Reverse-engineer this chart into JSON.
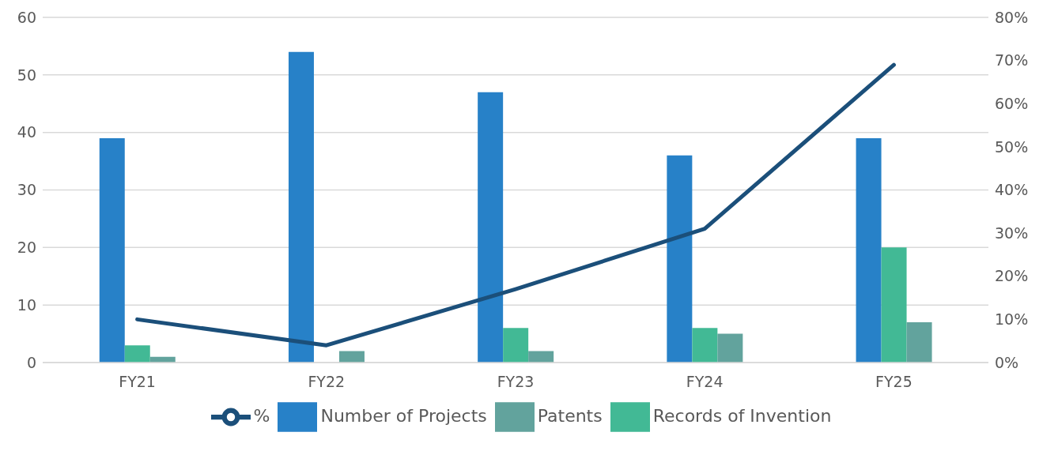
{
  "chart_data": {
    "type": "bar",
    "categories": [
      "FY21",
      "FY22",
      "FY23",
      "FY24",
      "FY25"
    ],
    "series": [
      {
        "name": "Number of Projects",
        "color": "#2781c8",
        "values": [
          39,
          54,
          47,
          36,
          39
        ]
      },
      {
        "name": "Records of Invention",
        "color": "#42b995",
        "values": [
          3,
          0,
          6,
          6,
          20
        ]
      },
      {
        "name": "Patents",
        "color": "#62a39d",
        "values": [
          1,
          2,
          2,
          5,
          7
        ]
      },
      {
        "name": "%",
        "type": "line",
        "axis": "y2",
        "color": "#1b4f7a",
        "values": [
          10,
          4,
          17,
          31,
          69
        ]
      }
    ],
    "ylim": [
      0,
      60
    ],
    "yticks": [
      0,
      10,
      20,
      30,
      40,
      50,
      60
    ],
    "y2lim": [
      0,
      80
    ],
    "y2ticks": [
      {
        "value": 0,
        "label": "0%"
      },
      {
        "value": 10,
        "label": "10%"
      },
      {
        "value": 20,
        "label": "20%"
      },
      {
        "value": 30,
        "label": "30%"
      },
      {
        "value": 40,
        "label": "40%"
      },
      {
        "value": 50,
        "label": "50%"
      },
      {
        "value": 60,
        "label": "60%"
      },
      {
        "value": 70,
        "label": "70%"
      },
      {
        "value": 80,
        "label": "80%"
      }
    ],
    "grid": "y",
    "legend": "bottom",
    "marker": "none",
    "line_style": "solid"
  }
}
